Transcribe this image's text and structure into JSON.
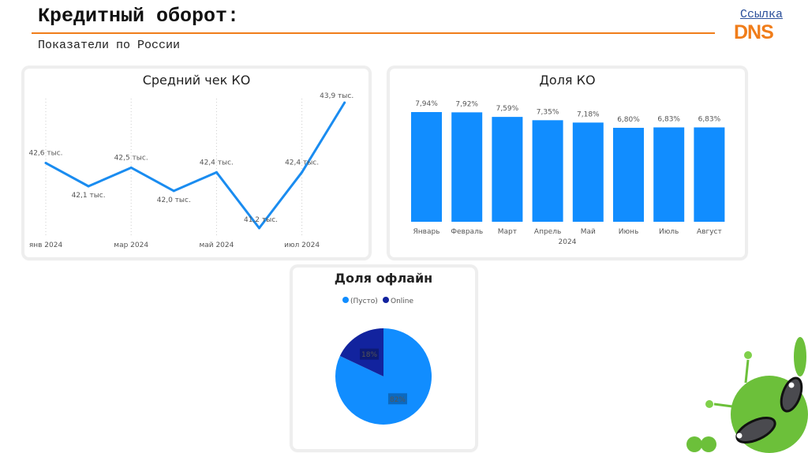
{
  "header": {
    "title": "Кредитный оборот:",
    "subtitle": "Показатели по России",
    "link_label": "Ссылка",
    "logo_text": "DNS",
    "accent_color": "#f07d1a"
  },
  "chart_data": [
    {
      "type": "line",
      "title": "Средний чек КО",
      "x": [
        "янв 2024",
        "фев 2024",
        "мар 2024",
        "апр 2024",
        "май 2024",
        "июн 2024",
        "июл 2024",
        "авг 2024"
      ],
      "tick_labels": [
        "янв 2024",
        "мар 2024",
        "май 2024",
        "июл 2024"
      ],
      "values": [
        42.6,
        42.1,
        42.5,
        42.0,
        42.4,
        41.2,
        42.4,
        43.9
      ],
      "data_labels": [
        "42,6 тыс.",
        "42,1 тыс.",
        "42,5 тыс.",
        "42,0 тыс.",
        "42,4 тыс.",
        "41,2 тыс.",
        "42,4 тыс.",
        "43,9 тыс."
      ],
      "color": "#1a8cf0",
      "grid": "vertical dotted"
    },
    {
      "type": "bar",
      "title": "Доля КО",
      "categories": [
        "Январь",
        "Февраль",
        "Март",
        "Апрель",
        "Май",
        "Июнь",
        "Июль",
        "Август"
      ],
      "values": [
        7.94,
        7.92,
        7.59,
        7.35,
        7.18,
        6.8,
        6.83,
        6.83
      ],
      "data_labels": [
        "7,94%",
        "7,92%",
        "7,59%",
        "7,35%",
        "7,18%",
        "6,80%",
        "6,83%",
        "6,83%"
      ],
      "xlabel": "2024",
      "ylim": [
        0,
        8.2
      ],
      "color": "#118dff"
    },
    {
      "type": "pie",
      "title": "Доля офлайн",
      "legend": [
        {
          "name": "(Пусто)",
          "color": "#118dff"
        },
        {
          "name": "Online",
          "color": "#12239e"
        }
      ],
      "values": [
        82,
        18
      ],
      "data_labels": [
        "82%",
        "18%"
      ],
      "legend_position": "top"
    }
  ]
}
